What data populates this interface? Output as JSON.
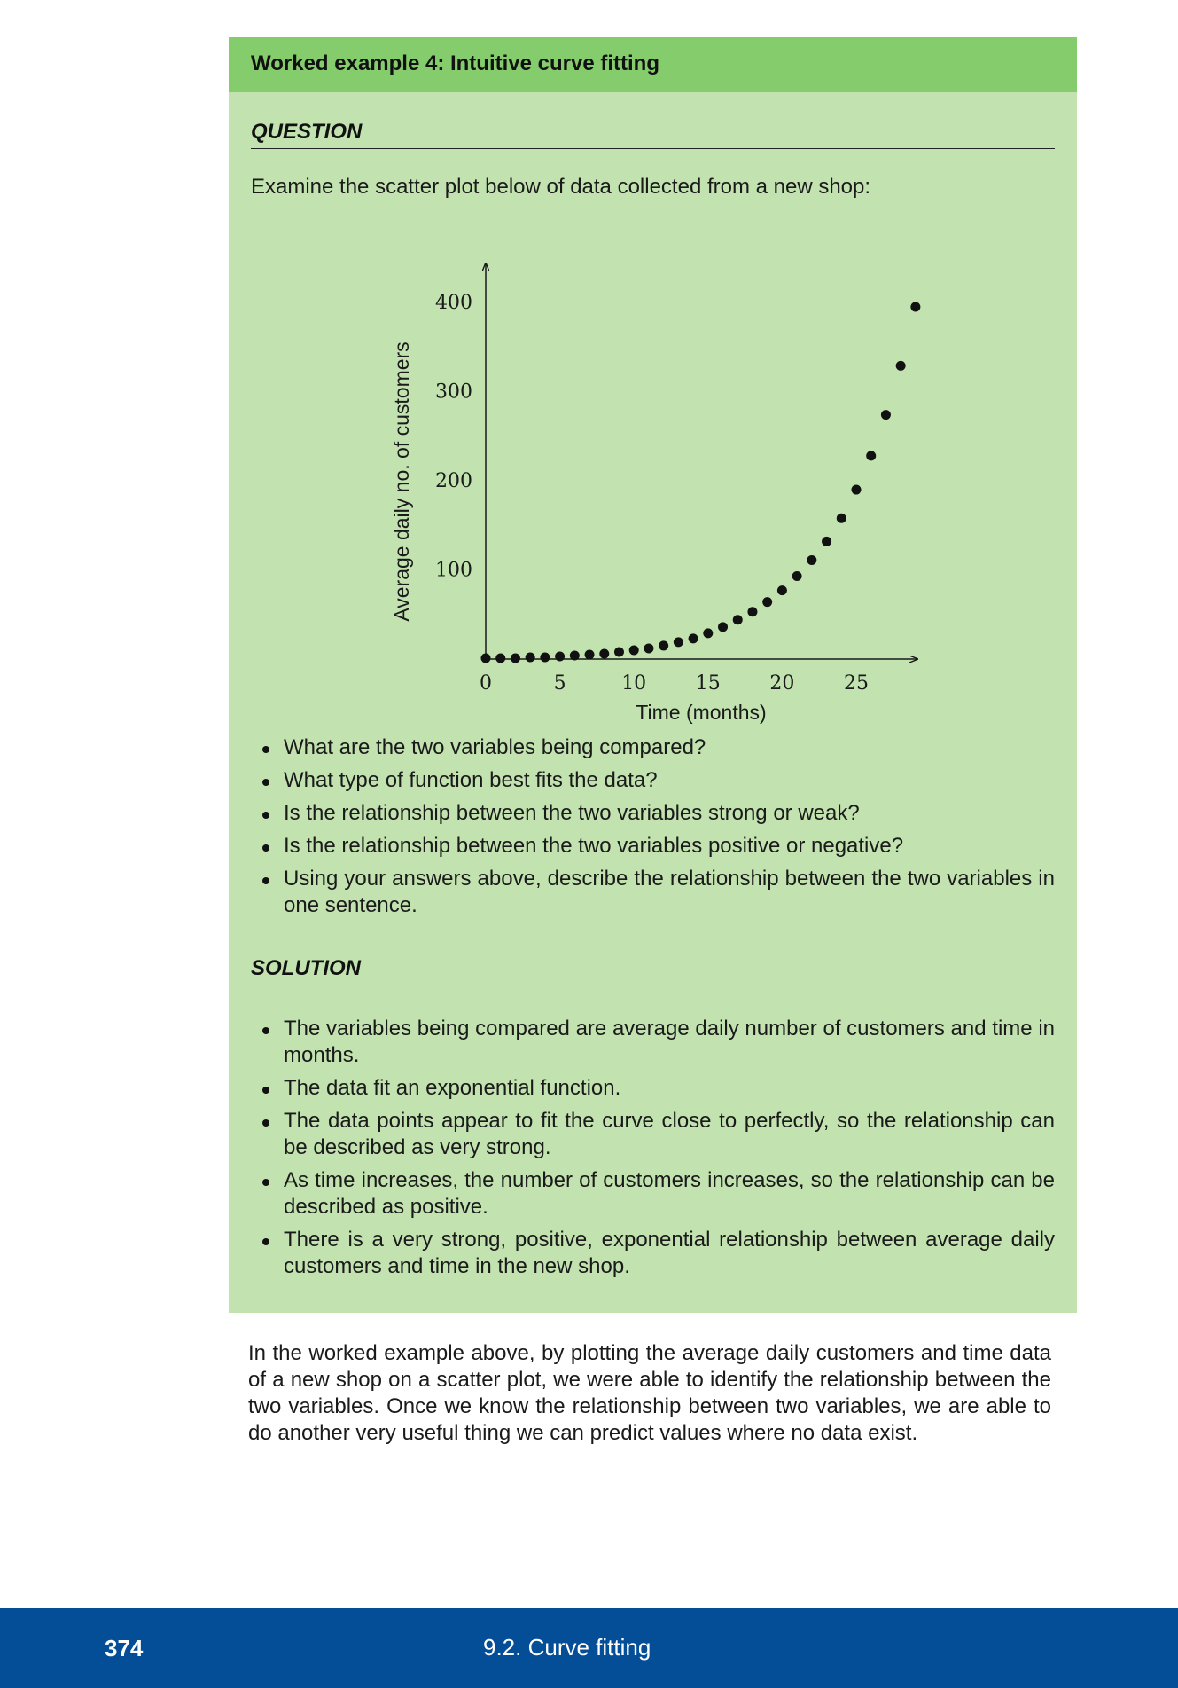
{
  "worked_example": {
    "title": "Worked example 4:  Intuitive curve fitting",
    "question_heading": "QUESTION",
    "question_intro": "Examine the scatter plot below of data collected from a new shop:",
    "questions": [
      "What are the two variables being compared?",
      "What type of function best fits the data?",
      "Is the relationship between the two variables strong or weak?",
      "Is the relationship between the two variables positive or negative?",
      "Using your answers above, describe the relationship between the two variables in one sentence."
    ],
    "solution_heading": "SOLUTION",
    "solutions": [
      "The variables being compared are average daily number of customers and time in months.",
      "The data fit an exponential function.",
      "The data points appear to fit the curve close to perfectly, so the relationship can be described as very strong.",
      "As time increases, the number of customers increases, so the relationship can be described as positive.",
      "There is a very strong, positive, exponential relationship between average daily customers and time in the new shop."
    ]
  },
  "chart_data": {
    "type": "scatter",
    "xlabel": "Time (months)",
    "ylabel": "Average daily no. of customers",
    "x_ticks": [
      0,
      5,
      10,
      15,
      20,
      25
    ],
    "y_ticks": [
      100,
      200,
      300,
      400
    ],
    "xlim": [
      0,
      29
    ],
    "ylim": [
      0,
      400
    ],
    "grid": false,
    "x": [
      0,
      1,
      2,
      3,
      4,
      5,
      6,
      7,
      8,
      9,
      10,
      11,
      12,
      13,
      14,
      15,
      16,
      17,
      18,
      19,
      20,
      21,
      22,
      23,
      24,
      25,
      26,
      27,
      28,
      29
    ],
    "y": [
      1,
      1,
      1,
      2,
      2,
      3,
      4,
      5,
      6,
      8,
      10,
      12,
      15,
      19,
      23,
      29,
      36,
      44,
      53,
      64,
      77,
      93,
      111,
      132,
      158,
      190,
      228,
      274,
      329,
      395
    ]
  },
  "body_text": "In the worked example above, by plotting the average daily customers and time data of a new shop on a scatter plot, we were able to identify the relationship between the two variables. Once we know the relationship between two variables, we are able to do another very useful thing we can predict values where no data exist.",
  "footer": {
    "page_number": "374",
    "section": "9.2.   Curve fitting"
  }
}
